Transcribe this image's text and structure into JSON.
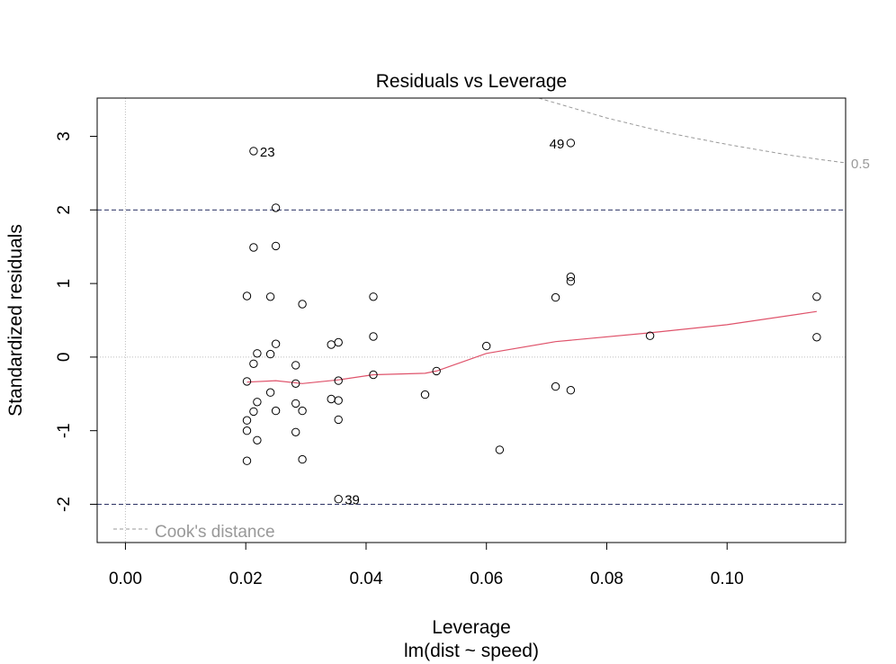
{
  "chart_data": {
    "type": "scatter",
    "title": "Residuals vs Leverage",
    "xlabel": "Leverage",
    "sublabel": "lm(dist ~ speed)",
    "ylabel": "Standardized residuals",
    "xlim": [
      -0.0047,
      0.1197
    ],
    "ylim": [
      -2.52,
      3.52
    ],
    "xticks": [
      0.0,
      0.02,
      0.04,
      0.06,
      0.08,
      0.1
    ],
    "xtick_labels": [
      "0.00",
      "0.02",
      "0.04",
      "0.06",
      "0.08",
      "0.10"
    ],
    "yticks": [
      -2,
      -1,
      0,
      1,
      2,
      3
    ],
    "ytick_labels": [
      "-2",
      "-1",
      "0",
      "1",
      "2",
      "3"
    ],
    "points": [
      [
        0.1149,
        0.27
      ],
      [
        0.1149,
        0.82
      ],
      [
        0.0872,
        0.29
      ],
      [
        0.074,
        1.09
      ],
      [
        0.074,
        1.03
      ],
      [
        0.074,
        2.91
      ],
      [
        0.074,
        -0.45
      ],
      [
        0.0715,
        0.81
      ],
      [
        0.0715,
        -0.4
      ],
      [
        0.0622,
        -1.26
      ],
      [
        0.06,
        0.15
      ],
      [
        0.0517,
        -0.19
      ],
      [
        0.0498,
        -0.51
      ],
      [
        0.0412,
        0.82
      ],
      [
        0.0412,
        0.28
      ],
      [
        0.0412,
        -0.24
      ],
      [
        0.0354,
        0.2
      ],
      [
        0.0354,
        -0.32
      ],
      [
        0.0354,
        -0.59
      ],
      [
        0.0354,
        -0.85
      ],
      [
        0.0354,
        -1.93
      ],
      [
        0.0342,
        0.17
      ],
      [
        0.0342,
        -0.57
      ],
      [
        0.0294,
        0.72
      ],
      [
        0.0294,
        -0.73
      ],
      [
        0.0294,
        -1.39
      ],
      [
        0.0283,
        -0.11
      ],
      [
        0.0283,
        -0.36
      ],
      [
        0.0283,
        -0.63
      ],
      [
        0.0283,
        -1.02
      ],
      [
        0.025,
        2.03
      ],
      [
        0.025,
        1.51
      ],
      [
        0.025,
        0.18
      ],
      [
        0.025,
        -0.73
      ],
      [
        0.0241,
        0.82
      ],
      [
        0.0241,
        0.04
      ],
      [
        0.0241,
        -0.48
      ],
      [
        0.0219,
        0.05
      ],
      [
        0.0219,
        -0.61
      ],
      [
        0.0219,
        -1.13
      ],
      [
        0.0213,
        2.8
      ],
      [
        0.0213,
        1.49
      ],
      [
        0.0213,
        -0.09
      ],
      [
        0.0213,
        -0.74
      ],
      [
        0.0202,
        0.83
      ],
      [
        0.0202,
        -0.33
      ],
      [
        0.0202,
        -0.86
      ],
      [
        0.0202,
        -1.0
      ],
      [
        0.0202,
        -1.41
      ]
    ],
    "smooth_line": [
      [
        0.0202,
        -0.34
      ],
      [
        0.025,
        -0.32
      ],
      [
        0.0294,
        -0.36
      ],
      [
        0.0354,
        -0.31
      ],
      [
        0.0412,
        -0.24
      ],
      [
        0.0498,
        -0.22
      ],
      [
        0.0517,
        -0.19
      ],
      [
        0.06,
        0.05
      ],
      [
        0.0715,
        0.21
      ],
      [
        0.0872,
        0.33
      ],
      [
        0.1,
        0.44
      ],
      [
        0.1149,
        0.62
      ]
    ],
    "labeled_points": [
      {
        "label": "23",
        "x": 0.0213,
        "y": 2.8,
        "side": "right"
      },
      {
        "label": "49",
        "x": 0.074,
        "y": 2.91,
        "side": "left"
      },
      {
        "label": "39",
        "x": 0.0354,
        "y": -1.93,
        "side": "right"
      }
    ],
    "reference_lines": {
      "h_dashed": [
        2,
        -2
      ],
      "h_dotted": [
        0
      ],
      "v_dotted": [
        0
      ]
    },
    "cooks_distance": {
      "level": "0.5",
      "p": 2,
      "curve": [
        [
          0.0687,
          3.52
        ],
        [
          0.075,
          3.37
        ],
        [
          0.08,
          3.25
        ],
        [
          0.085,
          3.15
        ],
        [
          0.09,
          3.05
        ],
        [
          0.095,
          2.97
        ],
        [
          0.1,
          2.89
        ],
        [
          0.105,
          2.82
        ],
        [
          0.11,
          2.75
        ],
        [
          0.115,
          2.69
        ],
        [
          0.1197,
          2.64
        ]
      ]
    },
    "legend": {
      "text": "Cook's distance",
      "position": "bottom-left"
    },
    "colors": {
      "smooth": "#DF536B",
      "hlines": "#2D3364",
      "dotted": "#BEBEBE",
      "cook": "#999999",
      "points": "#000000"
    }
  }
}
